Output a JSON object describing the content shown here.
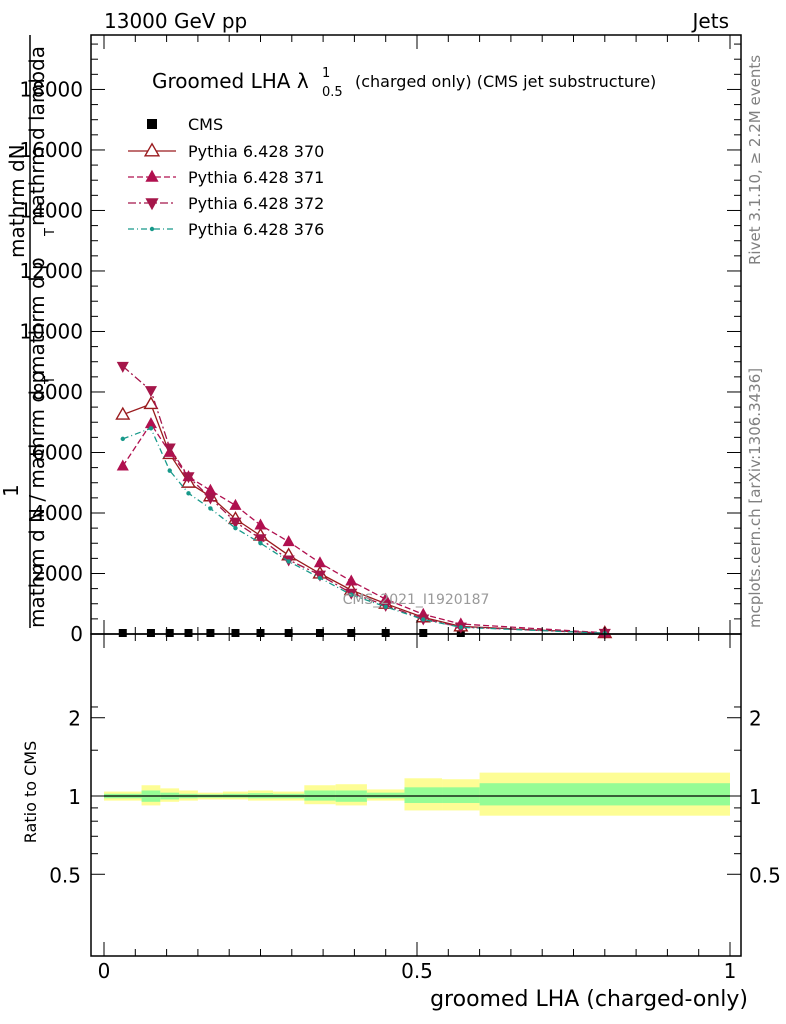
{
  "header": {
    "left": "13000 GeV pp",
    "right": "Jets"
  },
  "side_labels": {
    "rivet": "Rivet 3.1.10, ≥ 2.2M events",
    "mcplots": "mcplots.cern.ch [arXiv:1306.3436]"
  },
  "chart_data": [
    {
      "type": "line",
      "title": "Groomed LHA λ",
      "title_sup": "1",
      "title_sub": "0.5",
      "title_suffix": "(charged only) (CMS jet substructure)",
      "ylabel_line1": "mathrm d",
      "ylabel_N": "N",
      "ylabel_top_rest": "mathrm d p",
      "ylabel_top_T": "T",
      "ylabel_top_end": "mathrm d lambda",
      "ylabel_one": "1",
      "ylabel_bottom": "mathrm d N / mathrm d p",
      "ylabel_bottom_T": "T",
      "yticks": [
        "0",
        "2000",
        "4000",
        "6000",
        "8000",
        "10000",
        "12000",
        "14000",
        "16000",
        "18000"
      ],
      "xlim": [
        0,
        1
      ],
      "ylim": [
        0,
        19800
      ],
      "watermark": "CMS_2021_I1920187",
      "series": [
        {
          "name": "CMS",
          "color": "#000000",
          "marker": "square",
          "x": [
            0.03,
            0.075,
            0.105,
            0.135,
            0.17,
            0.21,
            0.25,
            0.295,
            0.345,
            0.395,
            0.45,
            0.51,
            0.57,
            0.8
          ],
          "values": [
            1,
            1,
            1,
            1,
            1,
            1,
            1,
            1,
            1,
            1,
            1,
            1,
            1,
            1
          ]
        },
        {
          "name": "Pythia 6.428 370",
          "color": "#9a1b1e",
          "marker": "triangle-up-open",
          "dash": "",
          "x": [
            0.03,
            0.075,
            0.105,
            0.135,
            0.17,
            0.21,
            0.25,
            0.295,
            0.345,
            0.395,
            0.45,
            0.51,
            0.57,
            0.8
          ],
          "values": [
            7250,
            7600,
            5950,
            5000,
            4550,
            3800,
            3250,
            2600,
            2000,
            1450,
            1000,
            550,
            250,
            30
          ]
        },
        {
          "name": "Pythia 6.428 371",
          "color": "#b0104f",
          "marker": "triangle-up",
          "dash": "6,3",
          "x": [
            0.03,
            0.075,
            0.105,
            0.135,
            0.17,
            0.21,
            0.25,
            0.295,
            0.345,
            0.395,
            0.45,
            0.51,
            0.57,
            0.8
          ],
          "values": [
            5550,
            6950,
            6000,
            5200,
            4750,
            4250,
            3600,
            3050,
            2350,
            1750,
            1150,
            650,
            330,
            40
          ]
        },
        {
          "name": "Pythia 6.428 372",
          "color": "#a5164a",
          "marker": "triangle-down",
          "dash": "8,3,2,3",
          "x": [
            0.03,
            0.075,
            0.105,
            0.135,
            0.17,
            0.21,
            0.25,
            0.295,
            0.345,
            0.395,
            0.45,
            0.51,
            0.57,
            0.8
          ],
          "values": [
            8850,
            8050,
            6150,
            5200,
            4500,
            3700,
            3150,
            2450,
            1950,
            1350,
            950,
            500,
            230,
            25
          ]
        },
        {
          "name": "Pythia 6.428 376",
          "color": "#17998a",
          "marker": "dot",
          "dash": "6,3,1,3",
          "x": [
            0.03,
            0.075,
            0.105,
            0.135,
            0.17,
            0.21,
            0.25,
            0.295,
            0.345,
            0.395,
            0.45,
            0.51,
            0.57,
            0.8
          ],
          "values": [
            6450,
            6800,
            5400,
            4650,
            4150,
            3500,
            3000,
            2400,
            1850,
            1300,
            900,
            480,
            220,
            25
          ]
        }
      ]
    },
    {
      "type": "area",
      "ylabel": "Ratio to CMS",
      "xlabel": "groomed LHA (charged-only)",
      "xticks": [
        "0",
        "0.5",
        "1"
      ],
      "yticks": [
        "0.5",
        "1",
        "2"
      ],
      "ylim": [
        0.4,
        2.4
      ],
      "bins": [
        {
          "x0": 0.0,
          "x1": 0.06,
          "yellow": [
            0.96,
            1.04
          ],
          "green": [
            0.98,
            1.02
          ]
        },
        {
          "x0": 0.06,
          "x1": 0.09,
          "yellow": [
            0.92,
            1.1
          ],
          "green": [
            0.95,
            1.05
          ]
        },
        {
          "x0": 0.09,
          "x1": 0.12,
          "yellow": [
            0.95,
            1.07
          ],
          "green": [
            0.97,
            1.03
          ]
        },
        {
          "x0": 0.12,
          "x1": 0.15,
          "yellow": [
            0.96,
            1.05
          ],
          "green": [
            0.98,
            1.02
          ]
        },
        {
          "x0": 0.15,
          "x1": 0.19,
          "yellow": [
            0.97,
            1.03
          ],
          "green": [
            0.985,
            1.015
          ]
        },
        {
          "x0": 0.19,
          "x1": 0.23,
          "yellow": [
            0.97,
            1.04
          ],
          "green": [
            0.985,
            1.02
          ]
        },
        {
          "x0": 0.23,
          "x1": 0.27,
          "yellow": [
            0.96,
            1.05
          ],
          "green": [
            0.98,
            1.025
          ]
        },
        {
          "x0": 0.27,
          "x1": 0.32,
          "yellow": [
            0.96,
            1.04
          ],
          "green": [
            0.98,
            1.02
          ]
        },
        {
          "x0": 0.32,
          "x1": 0.37,
          "yellow": [
            0.93,
            1.1
          ],
          "green": [
            0.96,
            1.05
          ]
        },
        {
          "x0": 0.37,
          "x1": 0.42,
          "yellow": [
            0.92,
            1.11
          ],
          "green": [
            0.95,
            1.05
          ]
        },
        {
          "x0": 0.42,
          "x1": 0.48,
          "yellow": [
            0.96,
            1.06
          ],
          "green": [
            0.98,
            1.03
          ]
        },
        {
          "x0": 0.48,
          "x1": 0.54,
          "yellow": [
            0.88,
            1.17
          ],
          "green": [
            0.94,
            1.08
          ]
        },
        {
          "x0": 0.54,
          "x1": 0.6,
          "yellow": [
            0.88,
            1.16
          ],
          "green": [
            0.94,
            1.08
          ]
        },
        {
          "x0": 0.6,
          "x1": 1.0,
          "yellow": [
            0.84,
            1.23
          ],
          "green": [
            0.92,
            1.12
          ]
        }
      ],
      "colors": {
        "yellow": "#fdfd95",
        "green": "#95fc95",
        "line": "#000000"
      }
    }
  ]
}
